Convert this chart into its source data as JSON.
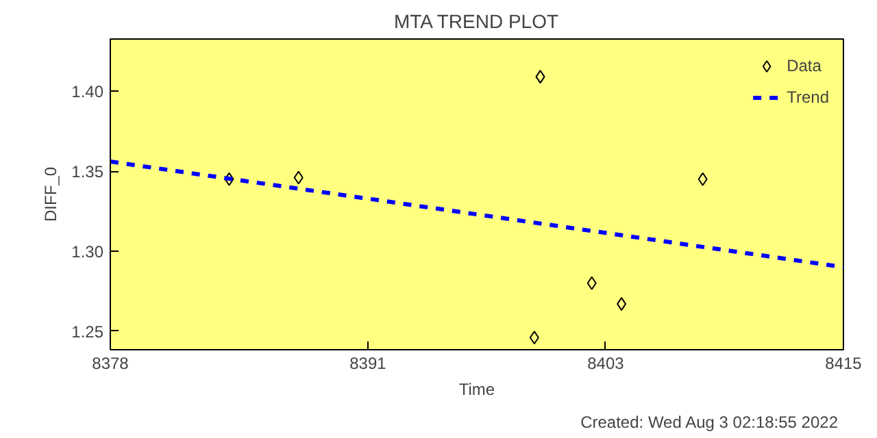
{
  "chart_data": {
    "type": "scatter",
    "title": "MTA TREND PLOT",
    "xlabel": "Time",
    "ylabel": "DIFF_0",
    "xlim": [
      8378,
      8415
    ],
    "xticks": [
      8378,
      8391,
      8403,
      8415
    ],
    "ylim": [
      1.2384,
      1.4326
    ],
    "yticks": [
      {
        "value": 1.25,
        "label": "1.25"
      },
      {
        "value": 1.3,
        "label": "1.30"
      },
      {
        "value": 1.35,
        "label": "1.35"
      },
      {
        "value": 1.4,
        "label": "1.40"
      }
    ],
    "series": [
      {
        "name": "Data",
        "marker": "diamond",
        "color": "#000000",
        "x": [
          8384.0,
          8387.5,
          8399.7,
          8399.4,
          8402.3,
          8403.8,
          8407.9
        ],
        "values": [
          1.345,
          1.346,
          1.409,
          1.246,
          1.28,
          1.267,
          1.345
        ]
      },
      {
        "name": "Trend",
        "type": "line",
        "marker": "none",
        "line_style": "dashed",
        "color": "#0000ff",
        "x": [
          8378,
          8415
        ],
        "values": [
          1.356,
          1.29
        ]
      }
    ],
    "legend": "top right",
    "grid": false,
    "annotations": [
      "Created: Wed Aug  3 02:18:55 2022"
    ]
  }
}
